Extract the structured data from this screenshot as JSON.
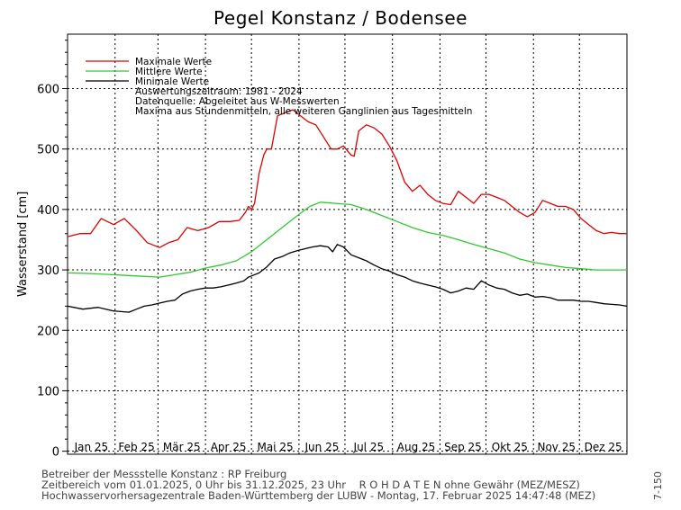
{
  "chart_data": {
    "type": "line",
    "title": "Pegel Konstanz / Bodensee",
    "xlabel": "",
    "ylabel": "Wasserstand [cm]",
    "ylim": [
      -5,
      690
    ],
    "yticks": [
      0,
      100,
      200,
      300,
      400,
      500,
      600
    ],
    "x_range_days": [
      0,
      365
    ],
    "categories": [
      "Jan 25",
      "Feb 25",
      "Mär 25",
      "Apr 25",
      "Mai 25",
      "Jun 25",
      "Jul 25",
      "Aug 25",
      "Sep 25",
      "Okt 25",
      "Nov 25",
      "Dez 25"
    ],
    "month_starts": [
      0,
      31,
      59,
      90,
      120,
      151,
      181,
      212,
      243,
      273,
      304,
      334,
      365
    ],
    "grid": true,
    "legend_position": "top-left",
    "notes": [
      "Auswertungszeitraum: 1981 - 2024",
      "Datenquelle: Abgeleitet aus W-Messwerten",
      "Maxima aus Stundenmitteln, alle weiteren Ganglinien aus Tagesmitteln"
    ],
    "series": [
      {
        "name": "Maximale Werte",
        "color": "#e00000",
        "x": [
          0,
          8,
          15,
          22,
          30,
          37,
          45,
          52,
          60,
          66,
          72,
          78,
          85,
          92,
          99,
          106,
          112,
          116,
          118,
          120,
          122,
          125,
          128,
          130,
          133,
          137,
          142,
          147,
          152,
          157,
          162,
          167,
          172,
          176,
          180,
          185,
          187,
          190,
          195,
          200,
          205,
          210,
          215,
          220,
          225,
          230,
          235,
          240,
          245,
          250,
          255,
          260,
          265,
          270,
          275,
          280,
          285,
          290,
          295,
          300,
          305,
          310,
          315,
          320,
          325,
          330,
          335,
          340,
          345,
          350,
          355,
          360,
          365
        ],
        "y": [
          355,
          360,
          360,
          385,
          375,
          385,
          365,
          345,
          337,
          345,
          350,
          370,
          365,
          370,
          380,
          380,
          382,
          395,
          405,
          400,
          410,
          460,
          490,
          500,
          500,
          555,
          560,
          565,
          555,
          545,
          540,
          520,
          500,
          500,
          505,
          490,
          488,
          530,
          540,
          535,
          525,
          505,
          480,
          445,
          430,
          440,
          425,
          415,
          410,
          408,
          430,
          420,
          410,
          425,
          425,
          420,
          415,
          405,
          395,
          388,
          395,
          415,
          410,
          405,
          405,
          400,
          385,
          375,
          365,
          360,
          362,
          360,
          360
        ]
      },
      {
        "name": "Mittlere Werte",
        "color": "#30c830",
        "x": [
          0,
          15,
          30,
          45,
          60,
          70,
          80,
          90,
          100,
          110,
          120,
          130,
          140,
          150,
          158,
          165,
          175,
          185,
          195,
          205,
          215,
          225,
          235,
          245,
          255,
          265,
          275,
          285,
          295,
          305,
          315,
          325,
          335,
          345,
          355,
          365
        ],
        "y": [
          295,
          294,
          292,
          290,
          288,
          292,
          296,
          303,
          308,
          315,
          330,
          350,
          370,
          390,
          405,
          412,
          410,
          408,
          400,
          390,
          380,
          370,
          362,
          357,
          350,
          342,
          335,
          328,
          318,
          312,
          308,
          304,
          302,
          300,
          300,
          300
        ]
      },
      {
        "name": "Minimale Werte",
        "color": "#000000",
        "x": [
          0,
          10,
          20,
          30,
          40,
          45,
          50,
          55,
          60,
          65,
          70,
          75,
          80,
          85,
          90,
          95,
          100,
          105,
          110,
          115,
          118,
          120,
          125,
          130,
          135,
          140,
          145,
          150,
          155,
          160,
          165,
          170,
          173,
          176,
          180,
          185,
          190,
          195,
          200,
          205,
          210,
          215,
          220,
          225,
          230,
          235,
          240,
          245,
          250,
          255,
          260,
          265,
          270,
          275,
          280,
          285,
          290,
          295,
          300,
          305,
          310,
          315,
          320,
          325,
          330,
          335,
          340,
          345,
          350,
          355,
          360,
          365
        ],
        "y": [
          240,
          235,
          238,
          232,
          230,
          235,
          240,
          242,
          245,
          248,
          250,
          260,
          265,
          268,
          270,
          270,
          272,
          275,
          278,
          282,
          288,
          290,
          295,
          305,
          318,
          322,
          328,
          332,
          335,
          338,
          340,
          338,
          330,
          342,
          338,
          325,
          320,
          315,
          308,
          302,
          298,
          292,
          288,
          282,
          278,
          275,
          272,
          268,
          262,
          265,
          270,
          268,
          282,
          275,
          270,
          268,
          262,
          258,
          260,
          255,
          256,
          254,
          250,
          250,
          250,
          248,
          248,
          246,
          244,
          243,
          242,
          240
        ]
      }
    ]
  },
  "footer": {
    "line1": "Betreiber der Messstelle Konstanz : RP Freiburg",
    "line2": "Zeitbereich vom 01.01.2025, 0 Uhr bis 31.12.2025, 23 Uhr    R O H D A T E N ohne Gewähr (MEZ/MESZ)",
    "line3": "Hochwasservorhersagezentrale Baden-Württemberg der LUBW - Montag, 17. Februar 2025 14:47:48 (MEZ)",
    "code": "7-150"
  }
}
